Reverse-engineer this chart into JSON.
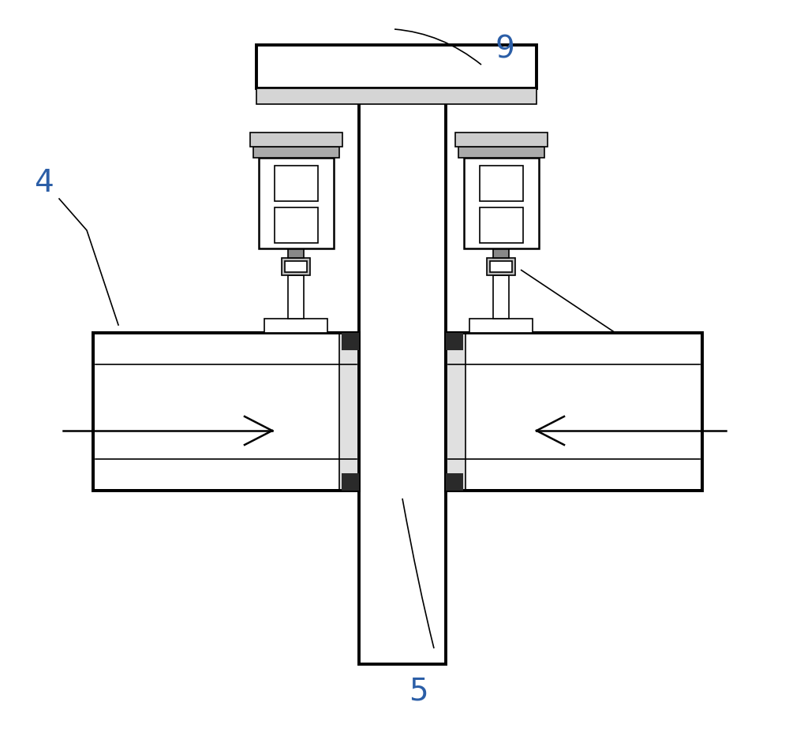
{
  "bg_color": "#ffffff",
  "line_color": "#000000",
  "label_fontsize": 28,
  "label_color": "#2b5ea7",
  "dark_strip": "#2a2a2a",
  "mid_gray": "#888888",
  "light_gray": "#cccccc"
}
